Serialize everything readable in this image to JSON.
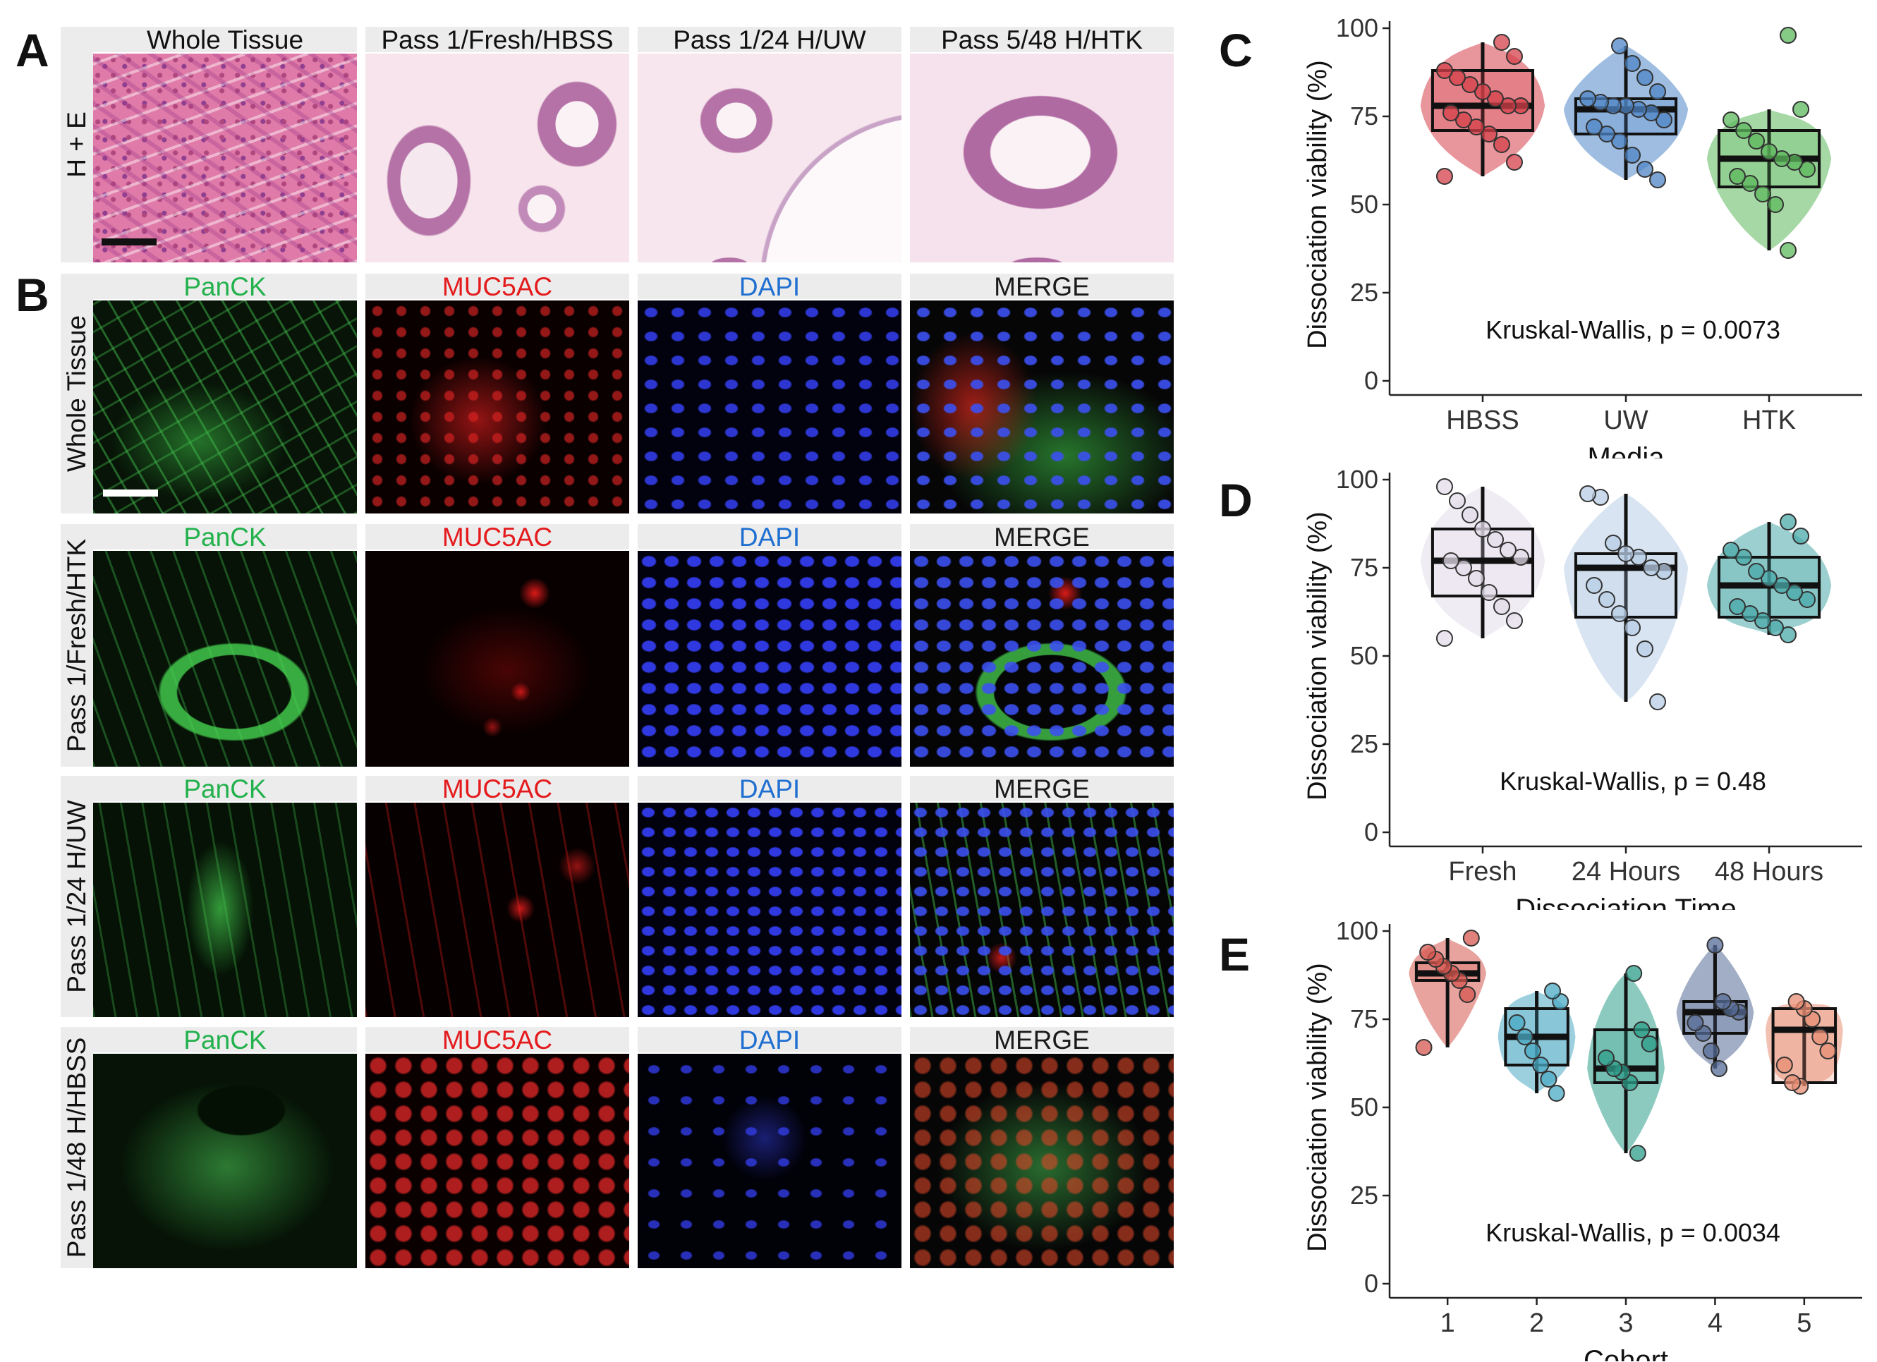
{
  "panel_letters": {
    "A": "A",
    "B": "B",
    "C": "C",
    "D": "D",
    "E": "E"
  },
  "he": {
    "row_label": "H + E",
    "columns": [
      "Whole Tissue",
      "Pass 1/Fresh/HBSS",
      "Pass 1/24 H/UW",
      "Pass 5/48 H/HTK"
    ]
  },
  "fluor": {
    "channels": [
      {
        "label": "PanCK",
        "color": "#22b14c"
      },
      {
        "label": "MUC5AC",
        "color": "#e41a1c"
      },
      {
        "label": "DAPI",
        "color": "#1f6fd1"
      },
      {
        "label": "MERGE",
        "color": "#1a1a1a"
      }
    ],
    "rows": [
      "Whole Tissue",
      "Pass 1/Fresh/HTK",
      "Pass 1/24 H/UW",
      "Pass 1/48 H/HBSS"
    ]
  },
  "chart_data": [
    {
      "type": "box",
      "panel": "C",
      "xlabel": "Media",
      "ylabel": "Dissociation viability (%)",
      "ylim": [
        0,
        100
      ],
      "yticks": [
        0,
        25,
        50,
        75,
        100
      ],
      "annotation": "Kruskal-Wallis, p = 0.0073",
      "categories": [
        "HBSS",
        "UW",
        "HTK"
      ],
      "colors": [
        "#d6404a",
        "#4f86c6",
        "#5cb85c"
      ],
      "box_stats": [
        {
          "min": 58,
          "q1": 71,
          "median": 78,
          "q3": 88,
          "max": 96
        },
        {
          "min": 57,
          "q1": 70,
          "median": 77,
          "q3": 80,
          "max": 95
        },
        {
          "min": 37,
          "q1": 55,
          "median": 63,
          "q3": 71,
          "max": 77
        }
      ],
      "points": [
        [
          58,
          62,
          67,
          70,
          72,
          74,
          76,
          78,
          78,
          80,
          82,
          84,
          86,
          88,
          92,
          96
        ],
        [
          57,
          60,
          64,
          68,
          70,
          72,
          74,
          76,
          77,
          78,
          78,
          79,
          80,
          82,
          86,
          90,
          95
        ],
        [
          37,
          50,
          53,
          56,
          58,
          60,
          62,
          63,
          65,
          68,
          71,
          74,
          77,
          98
        ]
      ]
    },
    {
      "type": "box",
      "panel": "D",
      "xlabel": "Dissociation Time",
      "ylabel": "Dissociation viability (%)",
      "ylim": [
        0,
        100
      ],
      "yticks": [
        0,
        25,
        50,
        75,
        100
      ],
      "annotation": "Kruskal-Wallis, p = 0.48",
      "categories": [
        "Fresh",
        "24 Hours",
        "48 Hours"
      ],
      "colors": [
        "#e3dcea",
        "#b8cde6",
        "#4aa8a8"
      ],
      "box_stats": [
        {
          "min": 55,
          "q1": 67,
          "median": 77,
          "q3": 86,
          "max": 98
        },
        {
          "min": 37,
          "q1": 61,
          "median": 75,
          "q3": 79,
          "max": 96
        },
        {
          "min": 56,
          "q1": 61,
          "median": 70,
          "q3": 78,
          "max": 88
        }
      ],
      "points": [
        [
          55,
          60,
          64,
          68,
          72,
          75,
          77,
          78,
          80,
          83,
          86,
          90,
          94,
          98
        ],
        [
          37,
          52,
          58,
          62,
          66,
          70,
          74,
          75,
          78,
          79,
          82,
          95,
          96
        ],
        [
          56,
          58,
          60,
          62,
          64,
          66,
          68,
          70,
          72,
          74,
          78,
          80,
          84,
          88
        ]
      ]
    },
    {
      "type": "box",
      "panel": "E",
      "xlabel": "Cohort",
      "ylabel": "Dissociation viability (%)",
      "ylim": [
        0,
        100
      ],
      "yticks": [
        0,
        25,
        50,
        75,
        100
      ],
      "annotation": "Kruskal-Wallis, p = 0.0034",
      "categories": [
        "1",
        "2",
        "3",
        "4",
        "5"
      ],
      "colors": [
        "#d6574f",
        "#4aa9c4",
        "#2e9e8a",
        "#556b96",
        "#e88e73"
      ],
      "box_stats": [
        {
          "min": 67,
          "q1": 86,
          "median": 88,
          "q3": 91,
          "max": 98
        },
        {
          "min": 54,
          "q1": 62,
          "median": 70,
          "q3": 78,
          "max": 83
        },
        {
          "min": 37,
          "q1": 57,
          "median": 61,
          "q3": 72,
          "max": 88
        },
        {
          "min": 61,
          "q1": 71,
          "median": 77,
          "q3": 80,
          "max": 96
        },
        {
          "min": 56,
          "q1": 57,
          "median": 72,
          "q3": 78,
          "max": 80
        }
      ],
      "points": [
        [
          67,
          82,
          86,
          88,
          90,
          92,
          94,
          98
        ],
        [
          54,
          58,
          62,
          66,
          70,
          74,
          80,
          83
        ],
        [
          37,
          57,
          60,
          61,
          64,
          68,
          72,
          88
        ],
        [
          61,
          66,
          71,
          74,
          77,
          78,
          80,
          96
        ],
        [
          56,
          57,
          62,
          66,
          70,
          75,
          78,
          80
        ]
      ]
    }
  ]
}
